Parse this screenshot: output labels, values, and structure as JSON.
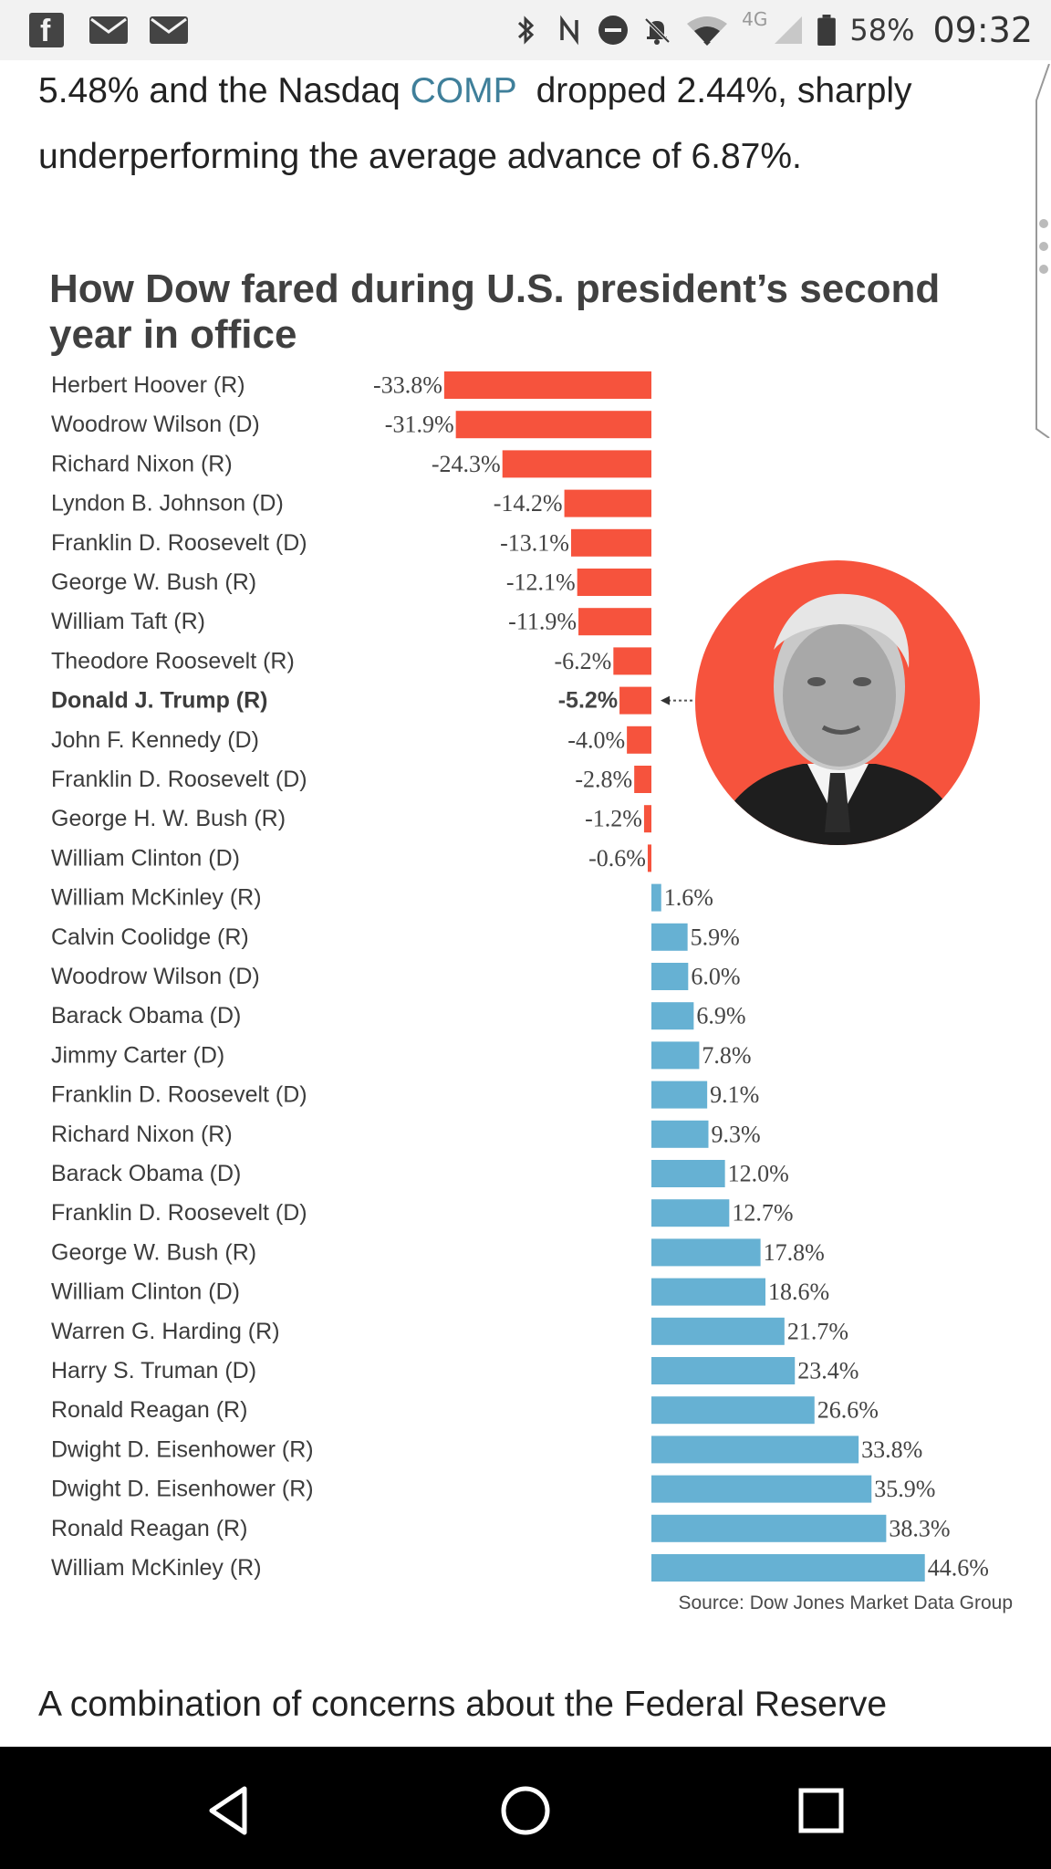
{
  "status_bar": {
    "battery": "58%",
    "time": "09:32",
    "network": "4G",
    "icons": [
      "facebook-icon",
      "mail-icon",
      "mail-icon",
      "bluetooth-icon",
      "nfc-icon",
      "do-not-disturb-icon",
      "notifications-off-icon",
      "wifi-icon",
      "signal-icon",
      "battery-icon"
    ]
  },
  "article": {
    "top_text_before": "5.48% and the Nasdaq ",
    "top_link": "COMP",
    "top_text_after": "  dropped 2.44%, sharply underperforming the average advance of 6.87%.",
    "bottom_text": "A combination of concerns about the Federal Reserve"
  },
  "chart_data": {
    "type": "bar",
    "orientation": "horizontal",
    "title": "How Dow fared during U.S. president’s second year in office",
    "source": "Source: Dow Jones Market Data Group",
    "highlight": "Donald J. Trump (R)",
    "colors": {
      "negative": "#f6533d",
      "positive": "#66b1d3",
      "portrait_bg": "#f6533d"
    },
    "xlim": [
      -33.8,
      44.6
    ],
    "unit": "%",
    "categories": [
      "Herbert Hoover (R)",
      "Woodrow Wilson (D)",
      "Richard Nixon (R)",
      "Lyndon B. Johnson (D)",
      "Franklin D. Roosevelt (D)",
      "George W. Bush (R)",
      "William Taft (R)",
      "Theodore Roosevelt (R)",
      "Donald J. Trump (R)",
      "John F. Kennedy (D)",
      "Franklin D. Roosevelt (D)",
      "George H. W. Bush (R)",
      "William Clinton (D)",
      "William McKinley (R)",
      "Calvin Coolidge (R)",
      "Woodrow Wilson (D)",
      "Barack Obama (D)",
      "Jimmy Carter (D)",
      "Franklin D. Roosevelt (D)",
      "Richard Nixon (R)",
      "Barack Obama (D)",
      "Franklin D. Roosevelt (D)",
      "George W. Bush (R)",
      "William Clinton (D)",
      "Warren G. Harding (R)",
      "Harry S. Truman (D)",
      "Ronald Reagan (R)",
      "Dwight D. Eisenhower (R)",
      "Dwight D. Eisenhower (R)",
      "Ronald Reagan (R)",
      "William McKinley (R)"
    ],
    "values": [
      -33.8,
      -31.9,
      -24.3,
      -14.2,
      -13.1,
      -12.1,
      -11.9,
      -6.2,
      -5.2,
      -4.0,
      -2.8,
      -1.2,
      -0.6,
      1.6,
      5.9,
      6.0,
      6.9,
      7.8,
      9.1,
      9.3,
      12.0,
      12.7,
      17.8,
      18.6,
      21.7,
      23.4,
      26.6,
      33.8,
      35.9,
      38.3,
      44.6
    ],
    "value_labels": [
      "-33.8%",
      "-31.9%",
      "-24.3%",
      "-14.2%",
      "-13.1%",
      "-12.1%",
      "-11.9%",
      "-6.2%",
      "-5.2%",
      "-4.0%",
      "-2.8%",
      "-1.2%",
      "-0.6%",
      "1.6%",
      "5.9%",
      "6.0%",
      "6.9%",
      "7.8%",
      "9.1%",
      "9.3%",
      "12.0%",
      "12.7%",
      "17.8%",
      "18.6%",
      "21.7%",
      "23.4%",
      "26.6%",
      "33.8%",
      "35.9%",
      "38.3%",
      "44.6%"
    ]
  },
  "nav_bar": {
    "buttons": [
      "back-icon",
      "home-icon",
      "recents-icon"
    ]
  }
}
